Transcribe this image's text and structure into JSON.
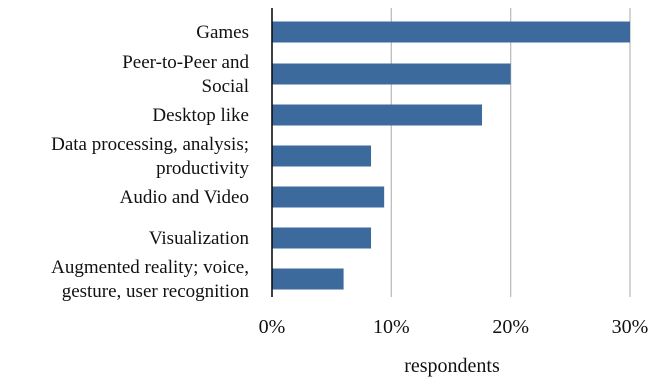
{
  "chart_data": {
    "type": "bar",
    "orientation": "horizontal",
    "categories": [
      "Games",
      "Peer-to-Peer and Social",
      "Desktop like",
      "Data processing, analysis; productivity",
      "Audio and Video",
      "Visualization",
      "Augmented reality; voice, gesture, user recognition"
    ],
    "category_label_lines": [
      [
        "Games"
      ],
      [
        "Peer-to-Peer and",
        "Social"
      ],
      [
        "Desktop like"
      ],
      [
        "Data processing, analysis;",
        "productivity"
      ],
      [
        "Audio and Video"
      ],
      [
        "Visualization"
      ],
      [
        "Augmented reality; voice,",
        "gesture, user recognition"
      ]
    ],
    "values": [
      30,
      20,
      17.6,
      8.3,
      9.4,
      8.3,
      6.0
    ],
    "x_ticks": [
      0,
      10,
      20,
      30
    ],
    "x_tick_labels": [
      "0%",
      "10%",
      "20%",
      "30%"
    ],
    "xlim": [
      0,
      30
    ],
    "xlabel": "respondents",
    "ylabel": "",
    "title": "",
    "grid": "vertical",
    "legend": "none",
    "bar_color": "#3c6a9c",
    "grid_color": "#bdbdbd",
    "axis_color": "#111111"
  }
}
